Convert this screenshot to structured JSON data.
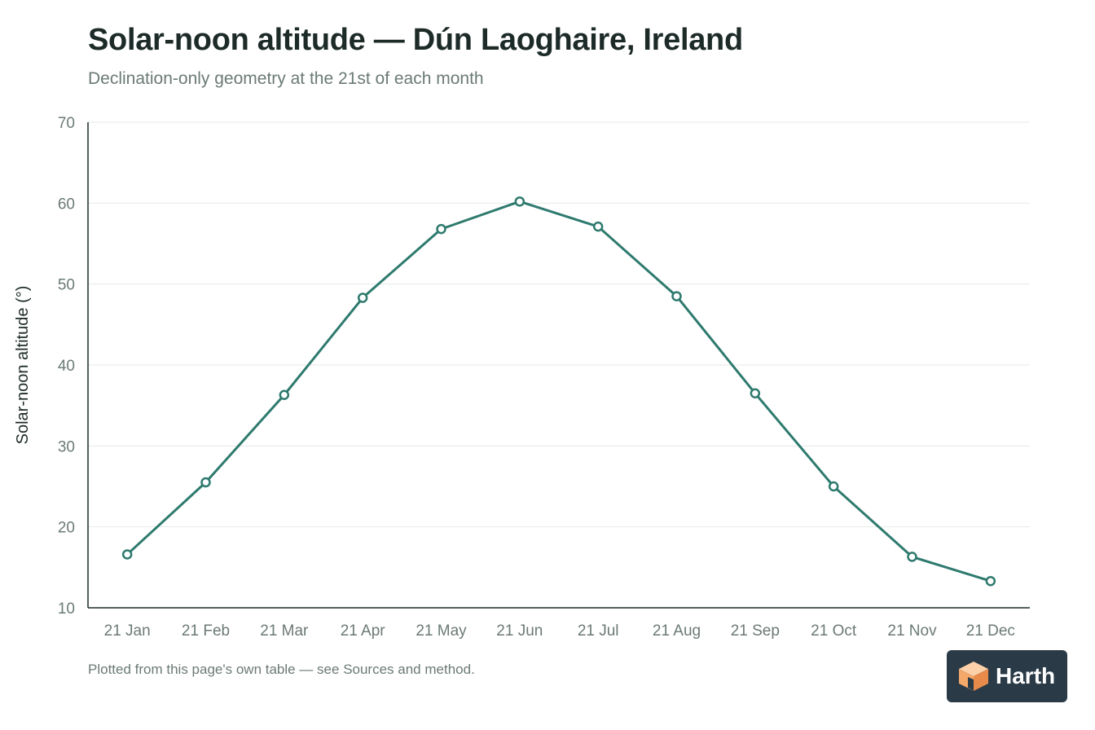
{
  "header": {
    "title": "Solar-noon altitude — Dún Laoghaire, Ireland",
    "subtitle": "Declination-only geometry at the 21st of each month"
  },
  "footer": {
    "note": "Plotted from this page's own table — see Sources and method."
  },
  "brand": {
    "name": "Harth",
    "icon": "harth-cube-logo-icon",
    "badge_color": "#2a3b47",
    "mark_colors": [
      "#f4a86a",
      "#e88a4a",
      "#fcd0a8"
    ]
  },
  "chart_data": {
    "type": "line",
    "title": "Solar-noon altitude — Dún Laoghaire, Ireland",
    "subtitle": "Declination-only geometry at the 21st of each month",
    "xlabel": "",
    "ylabel": "Solar-noon altitude (°)",
    "categories": [
      "21 Jan",
      "21 Feb",
      "21 Mar",
      "21 Apr",
      "21 May",
      "21 Jun",
      "21 Jul",
      "21 Aug",
      "21 Sep",
      "21 Oct",
      "21 Nov",
      "21 Dec"
    ],
    "series": [
      {
        "values": [
          16.6,
          25.5,
          36.3,
          48.3,
          56.8,
          60.2,
          57.1,
          48.5,
          36.5,
          25.0,
          16.3,
          13.3
        ],
        "color": "#2e7a6e"
      }
    ],
    "ylim": [
      10,
      70
    ],
    "yticks": [
      10,
      20,
      30,
      40,
      50,
      60,
      70
    ],
    "grid": true,
    "legend": "none",
    "colors": {
      "line": "#2e7a6e",
      "grid": "#e6eaea",
      "axis": "#1d2b28",
      "tick_text": "#6b7a76"
    }
  }
}
